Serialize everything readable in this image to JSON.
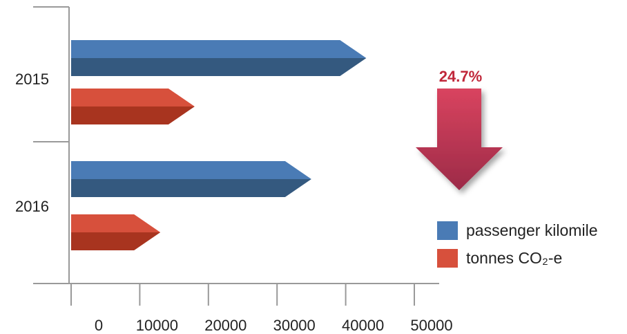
{
  "chart_data": {
    "type": "bar",
    "orientation": "horizontal",
    "categories": [
      "2015",
      "2016"
    ],
    "series": [
      {
        "name": "passenger kilomile",
        "values": [
          43000,
          35000
        ],
        "color": "#4a7bb5",
        "shade": "#34597f"
      },
      {
        "name": "tonnes  CO₂-e",
        "values": [
          18000,
          13000
        ],
        "color": "#d7503c",
        "shade": "#a8341f"
      }
    ],
    "xticks": [
      "0",
      "10000",
      "20000",
      "30000",
      "40000",
      "50000"
    ],
    "xlim": [
      0,
      50000
    ],
    "grid": false,
    "legend_position": "bottom-right",
    "annotation": {
      "text": "24.7%",
      "arrow": "down-arrow",
      "color": "#c0273a"
    }
  }
}
